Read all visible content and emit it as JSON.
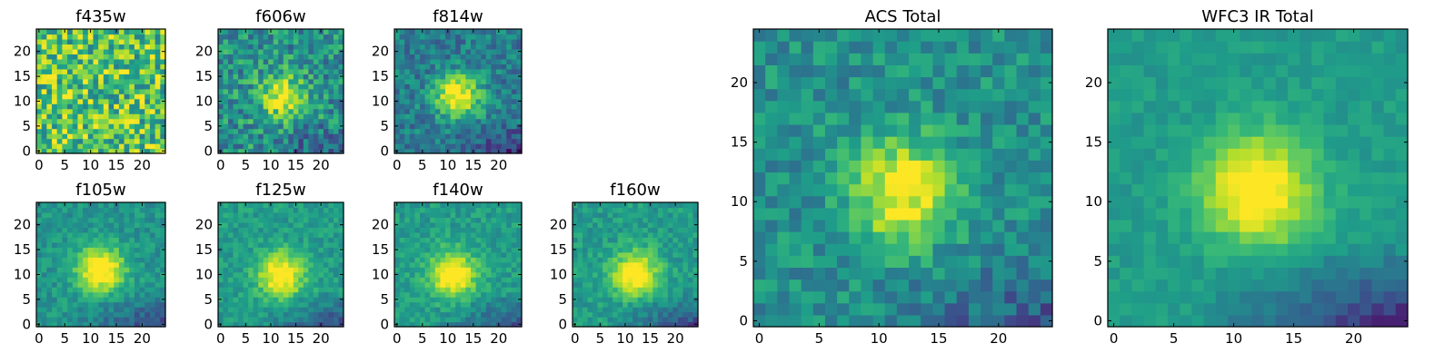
{
  "figure_title": "",
  "colormap": "viridis",
  "chart_data": [
    {
      "type": "heatmap",
      "title": "f435w",
      "xticks": [
        "0",
        "5",
        "10",
        "15",
        "20"
      ],
      "yticks": [
        "0",
        "5",
        "10",
        "15",
        "20"
      ],
      "xlim": [
        -0.5,
        24.5
      ],
      "ylim": [
        -0.5,
        24.5
      ],
      "grid_size": 25,
      "peak": [
        11,
        11
      ],
      "peak_strength": 0.0,
      "noise": 0.3,
      "base_level": 0.72,
      "bottom_dark": 0.0
    },
    {
      "type": "heatmap",
      "title": "f606w",
      "xticks": [
        "0",
        "5",
        "10",
        "15",
        "20"
      ],
      "yticks": [
        "0",
        "5",
        "10",
        "15",
        "20"
      ],
      "xlim": [
        -0.5,
        24.5
      ],
      "ylim": [
        -0.5,
        24.5
      ],
      "grid_size": 25,
      "peak": [
        12,
        11
      ],
      "peak_strength": 0.45,
      "noise": 0.22,
      "base_level": 0.5,
      "bottom_dark": 0.25
    },
    {
      "type": "heatmap",
      "title": "f814w",
      "xticks": [
        "0",
        "5",
        "10",
        "15",
        "20"
      ],
      "yticks": [
        "0",
        "5",
        "10",
        "15",
        "20"
      ],
      "xlim": [
        -0.5,
        24.5
      ],
      "ylim": [
        -0.5,
        24.5
      ],
      "grid_size": 25,
      "peak": [
        12,
        11
      ],
      "peak_strength": 0.6,
      "noise": 0.16,
      "base_level": 0.42,
      "bottom_dark": 0.3
    },
    {
      "type": "heatmap",
      "title": "f105w",
      "xticks": [
        "0",
        "5",
        "10",
        "15",
        "20"
      ],
      "yticks": [
        "0",
        "5",
        "10",
        "15",
        "20"
      ],
      "xlim": [
        -0.5,
        24.5
      ],
      "ylim": [
        -0.5,
        24.5
      ],
      "grid_size": 25,
      "peak": [
        12,
        11
      ],
      "peak_strength": 0.6,
      "noise": 0.1,
      "base_level": 0.52,
      "bottom_dark": 0.35
    },
    {
      "type": "heatmap",
      "title": "f125w",
      "xticks": [
        "0",
        "5",
        "10",
        "15",
        "20"
      ],
      "yticks": [
        "0",
        "5",
        "10",
        "15",
        "20"
      ],
      "xlim": [
        -0.5,
        24.5
      ],
      "ylim": [
        -0.5,
        24.5
      ],
      "grid_size": 25,
      "peak": [
        12,
        10
      ],
      "peak_strength": 0.55,
      "noise": 0.1,
      "base_level": 0.55,
      "bottom_dark": 0.35
    },
    {
      "type": "heatmap",
      "title": "f140w",
      "xticks": [
        "0",
        "5",
        "10",
        "15",
        "20"
      ],
      "yticks": [
        "0",
        "5",
        "10",
        "15",
        "20"
      ],
      "xlim": [
        -0.5,
        24.5
      ],
      "ylim": [
        -0.5,
        24.5
      ],
      "grid_size": 25,
      "peak": [
        11,
        10
      ],
      "peak_strength": 0.55,
      "noise": 0.1,
      "base_level": 0.55,
      "bottom_dark": 0.3
    },
    {
      "type": "heatmap",
      "title": "f160w",
      "xticks": [
        "0",
        "5",
        "10",
        "15",
        "20"
      ],
      "yticks": [
        "0",
        "5",
        "10",
        "15",
        "20"
      ],
      "xlim": [
        -0.5,
        24.5
      ],
      "ylim": [
        -0.5,
        24.5
      ],
      "grid_size": 25,
      "peak": [
        12,
        10
      ],
      "peak_strength": 0.55,
      "noise": 0.1,
      "base_level": 0.55,
      "bottom_dark": 0.35
    },
    {
      "type": "heatmap",
      "title": "ACS Total",
      "xticks": [
        "0",
        "5",
        "10",
        "15",
        "20"
      ],
      "yticks": [
        "0",
        "5",
        "10",
        "15",
        "20"
      ],
      "xlim": [
        -0.5,
        24.5
      ],
      "ylim": [
        -0.5,
        24.5
      ],
      "grid_size": 25,
      "peak": [
        12,
        11
      ],
      "peak_strength": 0.5,
      "noise": 0.14,
      "base_level": 0.5,
      "bottom_dark": 0.25
    },
    {
      "type": "heatmap",
      "title": "WFC3 IR Total",
      "xticks": [
        "0",
        "5",
        "10",
        "15",
        "20"
      ],
      "yticks": [
        "0",
        "5",
        "10",
        "15",
        "20"
      ],
      "xlim": [
        -0.5,
        24.5
      ],
      "ylim": [
        -0.5,
        24.5
      ],
      "grid_size": 25,
      "peak": [
        12,
        11
      ],
      "peak_strength": 0.55,
      "noise": 0.06,
      "base_level": 0.55,
      "bottom_dark": 0.45
    }
  ]
}
